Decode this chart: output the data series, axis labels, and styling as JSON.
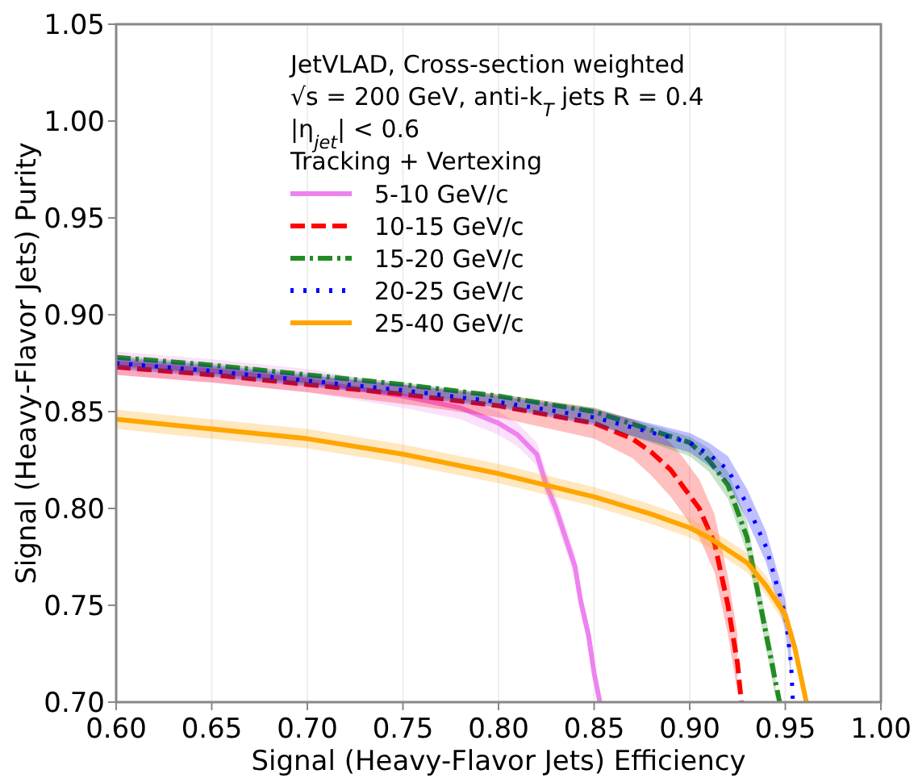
{
  "chart_data": {
    "type": "line",
    "xlabel": "Signal (Heavy-Flavor Jets) Efficiency",
    "ylabel": "Signal (Heavy-Flavor Jets) Purity",
    "legend_title": "JetVLAD, Cross-section weighted\n√s = 200 GeV, anti-k$_{T}$ jets R = 0.4\n|η$_{jet}$| < 0.6\nTracking + Vertexing",
    "xlim": [
      0.6,
      1.0
    ],
    "xticks": [
      {
        "value": 0.6,
        "label": "0.60"
      },
      {
        "value": 0.65,
        "label": "0.65"
      },
      {
        "value": 0.7,
        "label": "0.70"
      },
      {
        "value": 0.75,
        "label": "0.75"
      },
      {
        "value": 0.8,
        "label": "0.80"
      },
      {
        "value": 0.85,
        "label": "0.85"
      },
      {
        "value": 0.9,
        "label": "0.90"
      },
      {
        "value": 0.95,
        "label": "0.95"
      },
      {
        "value": 1.0,
        "label": "1.00"
      }
    ],
    "ylim": [
      0.7,
      1.05
    ],
    "yticks": [
      {
        "value": 0.7,
        "label": "0.70"
      },
      {
        "value": 0.75,
        "label": "0.75"
      },
      {
        "value": 0.8,
        "label": "0.80"
      },
      {
        "value": 0.85,
        "label": "0.85"
      },
      {
        "value": 0.9,
        "label": "0.90"
      },
      {
        "value": 0.95,
        "label": "0.95"
      },
      {
        "value": 1.0,
        "label": "1.00"
      },
      {
        "value": 1.05,
        "label": "1.05"
      }
    ],
    "grid": "x",
    "legend": "top",
    "series": [
      {
        "name": "5-10 GeV/c",
        "color": "#ee82ee",
        "line_style": "solid",
        "x": [
          0.6,
          0.65,
          0.7,
          0.75,
          0.78,
          0.8,
          0.81,
          0.82,
          0.825,
          0.83,
          0.835,
          0.84,
          0.843,
          0.847,
          0.85,
          0.853
        ],
        "values": [
          0.875,
          0.871,
          0.866,
          0.858,
          0.852,
          0.844,
          0.838,
          0.828,
          0.812,
          0.8,
          0.785,
          0.77,
          0.752,
          0.735,
          0.715,
          0.7
        ],
        "lower": [
          0.869,
          0.865,
          0.86,
          0.852,
          0.846,
          0.838,
          0.832,
          0.822,
          0.806,
          0.794,
          0.779,
          0.764,
          0.746,
          0.729,
          0.709,
          null
        ],
        "upper": [
          0.881,
          0.877,
          0.872,
          0.864,
          0.858,
          0.85,
          0.844,
          0.834,
          0.819,
          0.806,
          0.791,
          0.776,
          0.758,
          0.741,
          0.721,
          null
        ]
      },
      {
        "name": "10-15 GeV/c",
        "color": "#ff0000",
        "line_style": "dashed",
        "x": [
          0.6,
          0.65,
          0.7,
          0.75,
          0.8,
          0.85,
          0.87,
          0.88,
          0.89,
          0.896,
          0.905,
          0.913,
          0.92,
          0.925,
          0.927
        ],
        "values": [
          0.873,
          0.869,
          0.864,
          0.859,
          0.853,
          0.844,
          0.836,
          0.829,
          0.82,
          0.812,
          0.8,
          0.782,
          0.75,
          0.72,
          0.7
        ],
        "lower": [
          0.869,
          0.865,
          0.86,
          0.854,
          0.847,
          0.836,
          0.826,
          0.817,
          0.806,
          0.798,
          0.785,
          0.767,
          0.735,
          0.705,
          null
        ],
        "upper": [
          0.877,
          0.873,
          0.868,
          0.864,
          0.859,
          0.852,
          0.846,
          0.841,
          0.834,
          0.827,
          0.815,
          0.797,
          0.765,
          0.735,
          null
        ]
      },
      {
        "name": "15-20 GeV/c",
        "color": "#228b22",
        "line_style": "dashdot",
        "x": [
          0.6,
          0.65,
          0.7,
          0.75,
          0.8,
          0.85,
          0.9,
          0.91,
          0.92,
          0.93,
          0.935,
          0.94,
          0.945,
          0.947
        ],
        "values": [
          0.878,
          0.874,
          0.869,
          0.864,
          0.858,
          0.85,
          0.834,
          0.825,
          0.812,
          0.785,
          0.76,
          0.735,
          0.71,
          0.7
        ],
        "lower": [
          0.873,
          0.869,
          0.864,
          0.859,
          0.853,
          0.844,
          0.827,
          0.819,
          0.805,
          0.777,
          0.752,
          0.727,
          0.702,
          null
        ],
        "upper": [
          0.879,
          0.875,
          0.87,
          0.865,
          0.859,
          0.852,
          0.837,
          0.831,
          0.819,
          0.793,
          0.768,
          0.743,
          0.718,
          null
        ]
      },
      {
        "name": "20-25 GeV/c",
        "color": "#0000ff",
        "line_style": "dotted",
        "x": [
          0.6,
          0.65,
          0.7,
          0.75,
          0.8,
          0.85,
          0.9,
          0.91,
          0.92,
          0.93,
          0.94,
          0.95,
          0.953,
          0.954
        ],
        "values": [
          0.875,
          0.871,
          0.866,
          0.861,
          0.855,
          0.847,
          0.834,
          0.828,
          0.82,
          0.802,
          0.78,
          0.745,
          0.72,
          0.7
        ],
        "lower": [
          0.872,
          0.868,
          0.863,
          0.858,
          0.852,
          0.843,
          0.829,
          0.822,
          0.813,
          0.794,
          0.772,
          0.737,
          0.712,
          null
        ],
        "upper": [
          0.878,
          0.874,
          0.869,
          0.864,
          0.858,
          0.851,
          0.839,
          0.834,
          0.827,
          0.81,
          0.788,
          0.753,
          0.728,
          null
        ]
      },
      {
        "name": "25-40 GeV/c",
        "color": "#ffa500",
        "line_style": "solid",
        "x": [
          0.6,
          0.65,
          0.7,
          0.75,
          0.8,
          0.85,
          0.88,
          0.9,
          0.91,
          0.93,
          0.94,
          0.95,
          0.955,
          0.961
        ],
        "values": [
          0.846,
          0.841,
          0.836,
          0.828,
          0.818,
          0.806,
          0.797,
          0.79,
          0.785,
          0.772,
          0.76,
          0.745,
          0.728,
          0.7
        ],
        "lower": [
          0.841,
          0.836,
          0.831,
          0.823,
          0.813,
          0.801,
          0.792,
          0.785,
          0.78,
          0.767,
          0.755,
          0.74,
          0.723,
          null
        ],
        "upper": [
          0.851,
          0.846,
          0.841,
          0.833,
          0.823,
          0.811,
          0.802,
          0.795,
          0.79,
          0.777,
          0.765,
          0.75,
          0.733,
          null
        ]
      }
    ]
  }
}
